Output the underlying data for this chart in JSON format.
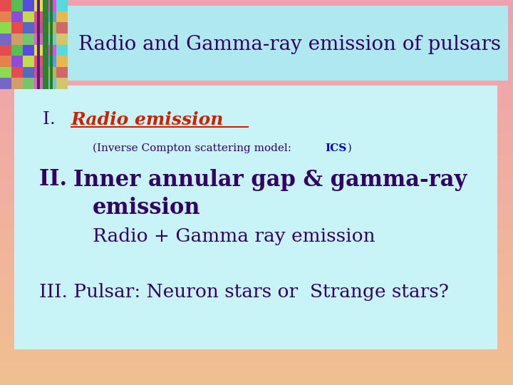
{
  "title": "Radio and Gamma-ray emission of pulsars",
  "title_color": "#330066",
  "title_bg": "#b8e8f0",
  "outer_bg_top": "#f0a8b8",
  "outer_bg_bottom": "#f5c8a0",
  "content_bg": "#c8f4f8",
  "line1_prefix": "I. ",
  "line1_text": "Radio emission",
  "line1_prefix_color": "#330066",
  "line1_text_color": "#cc2200",
  "line2_prefix": "(Inverse Compton scattering model: ",
  "line2_ICS": "ICS",
  "line2_suffix": " )",
  "line2_color": "#330066",
  "line2_ICS_color": "#0000cc",
  "line3_roman": "II. ",
  "line3_bold": "Inner annular gap & gamma-ray",
  "line3_color": "#330066",
  "line4_bold": "emission",
  "line4_color": "#330066",
  "line5": "Radio + Gamma ray emission",
  "line5_color": "#330066",
  "line6_text": "III. Pulsar: Neuron stars or  Strange stars?",
  "line6_color": "#330066",
  "figsize": [
    7.2,
    5.4
  ],
  "dpi": 100
}
